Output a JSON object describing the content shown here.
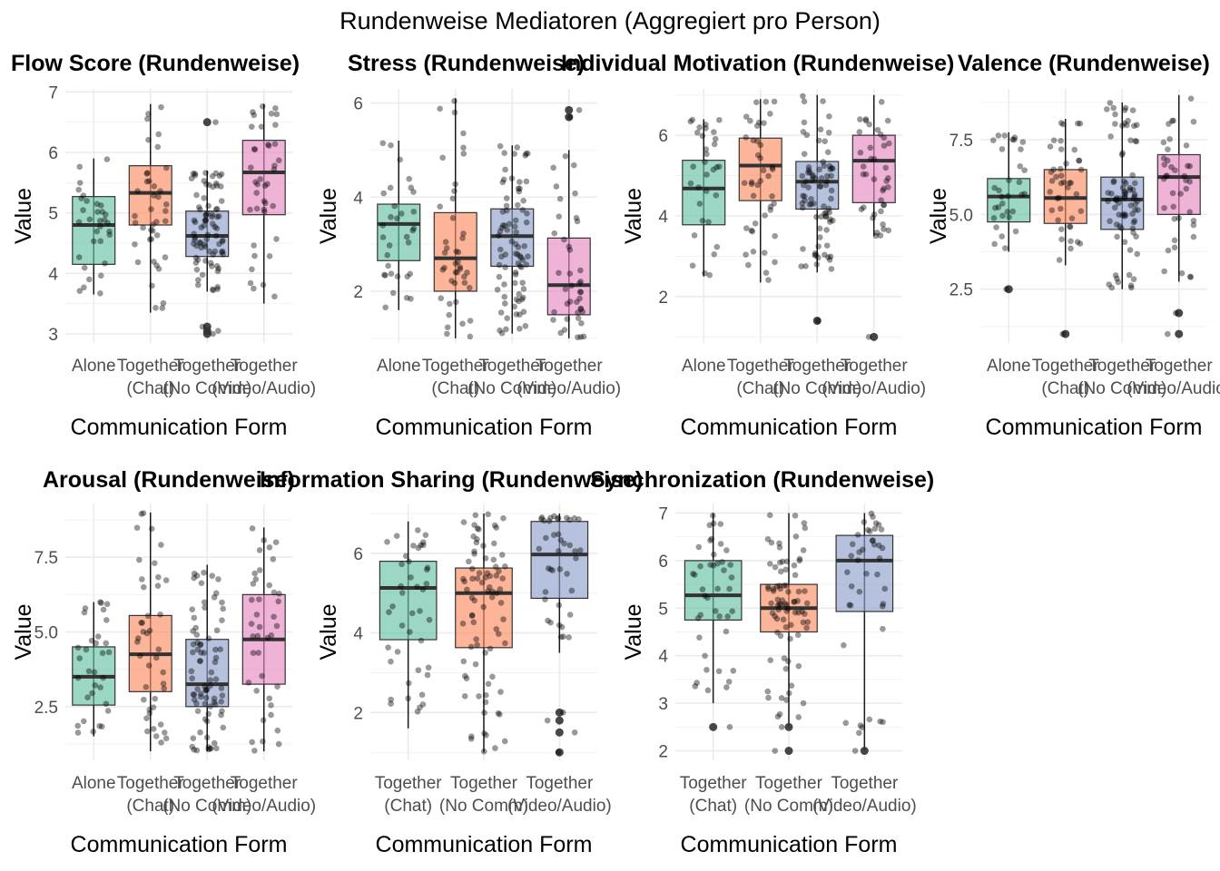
{
  "figure_title": "Rundenweise Mediatoren (Aggregiert pro Person)",
  "palette": {
    "Alone": "#66c2a5",
    "Together (Chat)": "#fc8d62",
    "Together (No Comm)": "#8da0cb",
    "Together (Video/Audio)": "#e78ac3"
  },
  "chart_data": [
    {
      "type": "boxplot",
      "title": "Flow Score (Rundenweise)",
      "xlabel": "Communication Form",
      "ylabel": "Value",
      "categories": [
        "Alone",
        "Together\n(Chat)",
        "Together\n(No Comm)",
        "Together\n(Video/Audio)"
      ],
      "ylim": [
        2.85,
        7.05
      ],
      "yticks": [
        3,
        4,
        5,
        6,
        7
      ],
      "yticklabels": [
        "3",
        "4",
        "5",
        "6",
        "7"
      ],
      "boxes": [
        {
          "min": 3.65,
          "q1": 4.15,
          "median": 4.8,
          "q3": 5.27,
          "max": 5.9,
          "outliers": [],
          "n": 32
        },
        {
          "min": 3.35,
          "q1": 4.8,
          "median": 5.33,
          "q3": 5.78,
          "max": 6.8,
          "outliers": [],
          "n": 40
        },
        {
          "min": 3.7,
          "q1": 4.28,
          "median": 4.62,
          "q3": 5.03,
          "max": 5.7,
          "outliers": [
            3.0,
            3.05,
            3.12,
            6.5
          ],
          "n": 80
        },
        {
          "min": 3.5,
          "q1": 4.97,
          "median": 5.67,
          "q3": 6.2,
          "max": 6.8,
          "outliers": [],
          "n": 40
        }
      ]
    },
    {
      "type": "boxplot",
      "title": "Stress (Rundenweise)",
      "xlabel": "Communication Form",
      "ylabel": "Value",
      "categories": [
        "Alone",
        "Together\n(Chat)",
        "Together\n(No Comm)",
        "Together\n(Video/Audio)"
      ],
      "ylim": [
        0.9,
        6.3
      ],
      "yticks": [
        2,
        4,
        6
      ],
      "yticklabels": [
        "2",
        "4",
        "6"
      ],
      "boxes": [
        {
          "min": 1.6,
          "q1": 2.65,
          "median": 3.43,
          "q3": 3.85,
          "max": 5.2,
          "outliers": [],
          "n": 32
        },
        {
          "min": 1.0,
          "q1": 2.0,
          "median": 2.7,
          "q3": 3.67,
          "max": 6.1,
          "outliers": [],
          "n": 42
        },
        {
          "min": 1.1,
          "q1": 2.53,
          "median": 3.17,
          "q3": 3.75,
          "max": 5.1,
          "outliers": [],
          "n": 80
        },
        {
          "min": 1.0,
          "q1": 1.5,
          "median": 2.13,
          "q3": 3.13,
          "max": 5.0,
          "outliers": [
            5.7,
            5.85
          ],
          "n": 40
        }
      ]
    },
    {
      "type": "boxplot",
      "title": "Individual Motivation (Rundenweise)",
      "xlabel": "Communication Form",
      "ylabel": "Value",
      "categories": [
        "Alone",
        "Together\n(Chat)",
        "Together\n(No Comm)",
        "Together\n(Video/Audio)"
      ],
      "ylim": [
        0.85,
        7.15
      ],
      "yticks": [
        2,
        4,
        6
      ],
      "yticklabels": [
        "2",
        "4",
        "6"
      ],
      "boxes": [
        {
          "min": 2.5,
          "q1": 3.78,
          "median": 4.68,
          "q3": 5.38,
          "max": 6.4,
          "outliers": [],
          "n": 32
        },
        {
          "min": 2.35,
          "q1": 4.38,
          "median": 5.25,
          "q3": 5.93,
          "max": 6.9,
          "outliers": [],
          "n": 42
        },
        {
          "min": 2.6,
          "q1": 4.17,
          "median": 4.85,
          "q3": 5.35,
          "max": 7.0,
          "outliers": [
            1.4
          ],
          "n": 80
        },
        {
          "min": 3.5,
          "q1": 4.33,
          "median": 5.37,
          "q3": 6.0,
          "max": 7.0,
          "outliers": [
            1.0
          ],
          "n": 40
        }
      ]
    },
    {
      "type": "boxplot",
      "title": "Valence (Rundenweise)",
      "xlabel": "Communication Form",
      "ylabel": "Value",
      "categories": [
        "Alone",
        "Together\n(Chat)",
        "Together\n(No Comm)",
        "Together\n(Video/Audio)"
      ],
      "ylim": [
        0.7,
        9.2
      ],
      "yticks": [
        2.5,
        5.0,
        7.5
      ],
      "yticklabels": [
        "2.5",
        "5.0",
        "7.5"
      ],
      "boxes": [
        {
          "min": 3.75,
          "q1": 4.75,
          "median": 5.6,
          "q3": 6.2,
          "max": 7.75,
          "outliers": [
            2.5
          ],
          "n": 32
        },
        {
          "min": 3.3,
          "q1": 4.7,
          "median": 5.55,
          "q3": 6.5,
          "max": 8.2,
          "outliers": [
            1.0
          ],
          "n": 42
        },
        {
          "min": 2.5,
          "q1": 4.5,
          "median": 5.5,
          "q3": 6.25,
          "max": 8.75,
          "outliers": [],
          "n": 80
        },
        {
          "min": 2.75,
          "q1": 5.0,
          "median": 6.25,
          "q3": 7.0,
          "max": 9.0,
          "outliers": [
            1.0,
            1.7
          ],
          "n": 40
        }
      ]
    },
    {
      "type": "boxplot",
      "title": "Arousal (Rundenweise)",
      "xlabel": "Communication Form",
      "ylabel": "Value",
      "categories": [
        "Alone",
        "Together\n(Chat)",
        "Together\n(No Comm)",
        "Together\n(Video/Audio)"
      ],
      "ylim": [
        0.7,
        9.3
      ],
      "yticks": [
        2.5,
        5.0,
        7.5
      ],
      "yticklabels": [
        "2.5",
        "5.0",
        "7.5"
      ],
      "boxes": [
        {
          "min": 1.5,
          "q1": 2.55,
          "median": 3.5,
          "q3": 4.5,
          "max": 6.0,
          "outliers": [],
          "n": 32
        },
        {
          "min": 1.0,
          "q1": 3.0,
          "median": 4.25,
          "q3": 5.55,
          "max": 9.0,
          "outliers": [],
          "n": 42
        },
        {
          "min": 1.0,
          "q1": 2.5,
          "median": 3.25,
          "q3": 4.75,
          "max": 7.25,
          "outliers": [],
          "n": 80
        },
        {
          "min": 1.0,
          "q1": 3.25,
          "median": 4.75,
          "q3": 6.25,
          "max": 8.5,
          "outliers": [],
          "n": 40
        }
      ]
    },
    {
      "type": "boxplot",
      "title": "Information Sharing (Rundenweise)",
      "xlabel": "Communication Form",
      "ylabel": "Value",
      "categories": [
        "Together\n(Chat)",
        "Together\n(No Comm)",
        "Together\n(Video/Audio)"
      ],
      "ylim": [
        0.8,
        7.25
      ],
      "yticks": [
        2,
        4,
        6
      ],
      "yticklabels": [
        "2",
        "4",
        "6"
      ],
      "boxes": [
        {
          "min": 1.6,
          "q1": 3.83,
          "median": 5.13,
          "q3": 5.8,
          "max": 6.8,
          "outliers": [],
          "n": 42
        },
        {
          "min": 1.0,
          "q1": 3.63,
          "median": 5.0,
          "q3": 5.63,
          "max": 7.0,
          "outliers": [],
          "n": 80
        },
        {
          "min": 3.5,
          "q1": 4.87,
          "median": 5.97,
          "q3": 6.8,
          "max": 7.0,
          "outliers": [
            1.0,
            1.5,
            1.8,
            2.0
          ],
          "n": 40
        }
      ]
    },
    {
      "type": "boxplot",
      "title": "Synchronization (Rundenweise)",
      "xlabel": "Communication Form",
      "ylabel": "Value",
      "categories": [
        "Together\n(Chat)",
        "Together\n(No Comm)",
        "Together\n(Video/Audio)"
      ],
      "ylim": [
        1.8,
        7.2
      ],
      "yticks": [
        2,
        3,
        4,
        5,
        6,
        7
      ],
      "yticklabels": [
        "2",
        "3",
        "4",
        "5",
        "6",
        "7"
      ],
      "boxes": [
        {
          "min": 3.0,
          "q1": 4.75,
          "median": 5.27,
          "q3": 6.0,
          "max": 7.0,
          "outliers": [
            2.5
          ],
          "n": 42
        },
        {
          "min": 2.5,
          "q1": 4.5,
          "median": 5.0,
          "q3": 5.5,
          "max": 7.0,
          "outliers": [
            2.0,
            2.5
          ],
          "n": 80
        },
        {
          "min": 2.0,
          "q1": 4.93,
          "median": 6.0,
          "q3": 6.53,
          "max": 7.0,
          "outliers": [
            2.0
          ],
          "n": 40
        }
      ]
    }
  ]
}
